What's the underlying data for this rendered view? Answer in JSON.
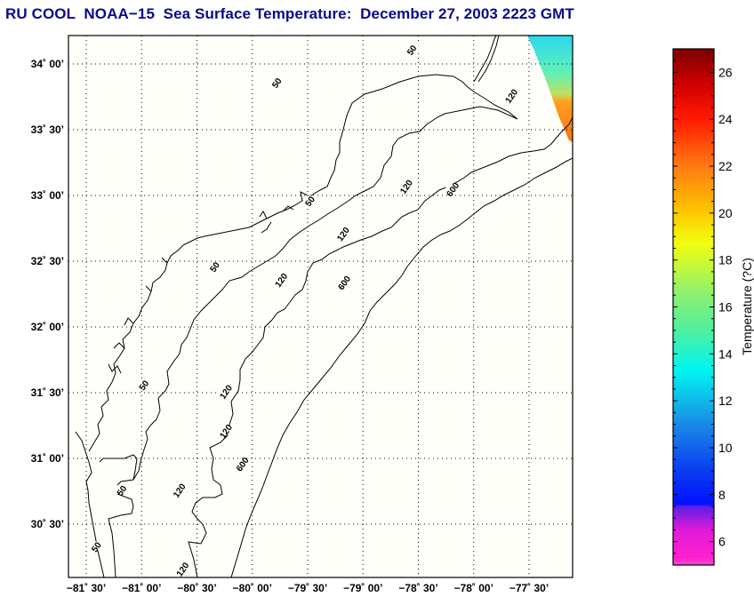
{
  "title": "RU COOL  NOAA−15  Sea Surface Temperature:  December 27, 2003 2223 GMT",
  "chart_data": {
    "type": "heatmap",
    "title": "RU COOL  NOAA-15 Sea Surface Temperature: December 27, 2003 2223 GMT",
    "map_extent": {
      "lon_min": -81.667,
      "lon_max": -77.25,
      "lat_min": 30.1,
      "lat_max": 34.22
    },
    "grid": true,
    "lat_ticks": [
      {
        "value": 34.0,
        "label": "34˚ 00’"
      },
      {
        "value": 33.5,
        "label": "33˚ 30’"
      },
      {
        "value": 33.0,
        "label": "33˚ 00’"
      },
      {
        "value": 32.5,
        "label": "32˚ 30’"
      },
      {
        "value": 32.0,
        "label": "32˚ 00’"
      },
      {
        "value": 31.5,
        "label": "31˚ 30’"
      },
      {
        "value": 31.0,
        "label": "31˚ 00’"
      },
      {
        "value": 30.5,
        "label": "30˚ 30’"
      }
    ],
    "lon_ticks": [
      {
        "value": -81.5,
        "label": "−81˚ 30’"
      },
      {
        "value": -81.0,
        "label": "−81˚ 00’"
      },
      {
        "value": -80.5,
        "label": "−80˚ 30’"
      },
      {
        "value": -80.0,
        "label": "−80˚ 00’"
      },
      {
        "value": -79.5,
        "label": "−79˚ 30’"
      },
      {
        "value": -79.0,
        "label": "−79˚ 00’"
      },
      {
        "value": -78.5,
        "label": "−78˚ 30’"
      },
      {
        "value": -78.0,
        "label": "−78˚ 00’"
      },
      {
        "value": -77.5,
        "label": "−77˚ 30’"
      }
    ],
    "bathymetry_contours": [
      {
        "depth": 50,
        "label": "50",
        "label_points": [
          [
            -81.17,
            30.75
          ],
          [
            -81.4,
            30.32
          ],
          [
            -80.97,
            31.55
          ],
          [
            -80.33,
            32.45
          ],
          [
            -79.47,
            32.95
          ],
          [
            -79.77,
            33.85
          ],
          [
            -78.55,
            34.1
          ]
        ]
      },
      {
        "depth": 120,
        "label": "120",
        "label_points": [
          [
            -80.65,
            30.75
          ],
          [
            -80.62,
            30.15
          ],
          [
            -80.23,
            31.5
          ],
          [
            -80.23,
            31.2
          ],
          [
            -79.73,
            32.35
          ],
          [
            -79.17,
            32.7
          ],
          [
            -78.6,
            33.06
          ],
          [
            -77.65,
            33.75
          ]
        ]
      },
      {
        "depth": 600,
        "label": "600",
        "label_points": [
          [
            -80.08,
            30.95
          ],
          [
            -79.16,
            32.33
          ],
          [
            -78.18,
            33.04
          ]
        ]
      }
    ],
    "sst_overlay": {
      "description": "Partial satellite swath in upper-right corner",
      "region": "northeast corner",
      "values_celsius_range": [
        13,
        22
      ]
    },
    "colorbar": {
      "label": "Temperature (?C)",
      "range": [
        5,
        27
      ],
      "ticks": [
        6,
        8,
        10,
        12,
        14,
        16,
        18,
        20,
        22,
        24,
        26
      ],
      "colormap_stops": [
        {
          "value": 5.0,
          "color": "#ff4cd2"
        },
        {
          "value": 5.3,
          "color": "#ff20d0"
        },
        {
          "value": 6.5,
          "color": "#e01ad8"
        },
        {
          "value": 7.5,
          "color": "#5a1ee6"
        },
        {
          "value": 7.6,
          "color": "#0010ff"
        },
        {
          "value": 9.0,
          "color": "#0a3cf0"
        },
        {
          "value": 11.0,
          "color": "#1a8ae6"
        },
        {
          "value": 13.3,
          "color": "#00f5f0"
        },
        {
          "value": 15.0,
          "color": "#50f0a0"
        },
        {
          "value": 16.5,
          "color": "#8af070"
        },
        {
          "value": 18.7,
          "color": "#f0ff10"
        },
        {
          "value": 20.0,
          "color": "#ffc800"
        },
        {
          "value": 22.0,
          "color": "#ff7a10"
        },
        {
          "value": 24.0,
          "color": "#ff1a00"
        },
        {
          "value": 25.5,
          "color": "#d00000"
        },
        {
          "value": 27.0,
          "color": "#7a0000"
        }
      ]
    }
  },
  "colors": {
    "title": "#0a0a8c",
    "plot_background": "#fffffa",
    "frame": "#000000"
  }
}
